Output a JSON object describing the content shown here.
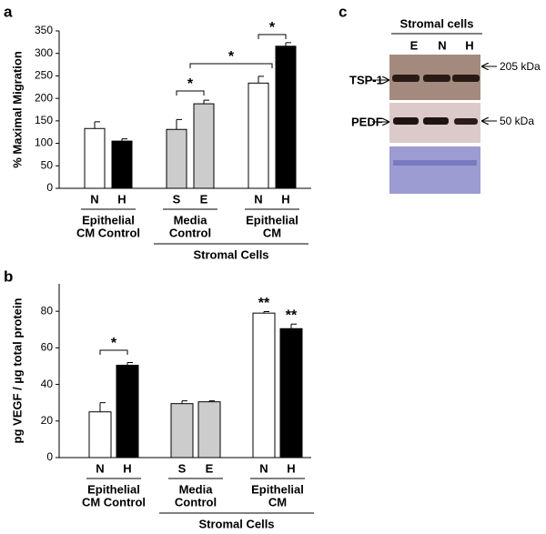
{
  "chart_data": [
    {
      "type": "bar",
      "panel": "a",
      "y_label": "% Maximal Migration",
      "ylim": [
        0,
        350
      ],
      "yticks": [
        0,
        50,
        100,
        150,
        200,
        250,
        300,
        350
      ],
      "groups": [
        {
          "label": [
            "Epithelial",
            "CM Control"
          ],
          "categories": [
            "N",
            "H"
          ],
          "values": [
            133,
            105
          ],
          "errors": [
            15,
            5
          ],
          "colors": [
            "#ffffff",
            "#000000"
          ]
        },
        {
          "label": [
            "Media",
            "Control"
          ],
          "categories": [
            "S",
            "E"
          ],
          "values": [
            131,
            188
          ],
          "errors": [
            22,
            8
          ],
          "colors": [
            "#cccccc",
            "#cccccc"
          ]
        },
        {
          "label": [
            "Epithelial",
            "CM"
          ],
          "categories": [
            "N",
            "H"
          ],
          "values": [
            234,
            316
          ],
          "errors": [
            15,
            8
          ],
          "colors": [
            "#ffffff",
            "#000000"
          ]
        }
      ],
      "supergroup_label": "Stromal Cells",
      "annotations": [
        "*",
        "*",
        "*"
      ]
    },
    {
      "type": "bar",
      "panel": "b",
      "y_label": "pg VEGF / µg total protein",
      "ylim": [
        0,
        95
      ],
      "yticks": [
        0,
        20,
        40,
        60,
        80
      ],
      "groups": [
        {
          "label": [
            "Epithelial",
            "CM Control"
          ],
          "categories": [
            "N",
            "H"
          ],
          "values": [
            25,
            50.5
          ],
          "errors": [
            5,
            1.5
          ],
          "colors": [
            "#ffffff",
            "#000000"
          ]
        },
        {
          "label": [
            "Media",
            "Control"
          ],
          "categories": [
            "S",
            "E"
          ],
          "values": [
            29.5,
            30.5
          ],
          "errors": [
            1.5,
            0.5
          ],
          "colors": [
            "#cccccc",
            "#cccccc"
          ]
        },
        {
          "label": [
            "Epithelial",
            "CM"
          ],
          "categories": [
            "N",
            "H"
          ],
          "values": [
            79,
            70.5
          ],
          "errors": [
            0.8,
            2.5
          ],
          "colors": [
            "#ffffff",
            "#000000"
          ]
        }
      ],
      "supergroup_label": "Stromal Cells",
      "annotations": [
        "*",
        "**",
        "**"
      ]
    }
  ],
  "blot": {
    "panel": "c",
    "title": "Stromal cells",
    "lanes": [
      "E",
      "N",
      "H"
    ],
    "rows": [
      {
        "label": "TSP-1",
        "marker": "205 kDa"
      },
      {
        "label": "PEDF",
        "marker": "50 kDa"
      }
    ]
  }
}
